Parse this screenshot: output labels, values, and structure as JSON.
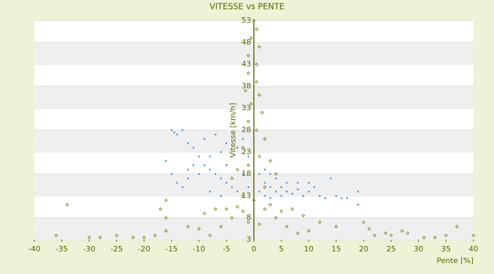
{
  "chart_data": {
    "type": "scatter",
    "title": "VITESSE vs PENTE",
    "x_label": "Pente [%]",
    "y_label": "Vitesse [km/h]",
    "xlim": [
      -40,
      40
    ],
    "xticks": [
      -40,
      -35,
      -30,
      -25,
      -20,
      -15,
      -10,
      -5,
      0,
      5,
      10,
      15,
      20,
      25,
      30,
      35,
      40
    ],
    "ylim": [
      3,
      53
    ],
    "yticks": [
      3,
      8,
      13,
      18,
      23,
      28,
      33,
      38,
      43,
      48,
      53
    ],
    "grid": true,
    "series": [
      {
        "color": "#4a90d9",
        "marker": "square",
        "x": [
          -14,
          -13,
          -12,
          -11,
          -10,
          -9,
          -8,
          -7,
          -6,
          -5,
          -4,
          -3,
          -15,
          -14.5,
          -16,
          -15,
          -14,
          -12,
          -10,
          -8,
          -6,
          -5,
          -4,
          -3,
          -2,
          -1,
          -2,
          -1,
          0,
          1,
          1,
          2,
          2,
          3,
          3,
          4,
          4,
          5,
          5,
          6,
          7,
          8,
          9,
          10,
          11,
          12,
          13,
          14,
          15,
          16,
          17,
          19,
          19,
          -9,
          -7,
          -5,
          -6,
          -8,
          -11,
          -13,
          -12,
          2,
          6,
          8,
          10,
          3
        ],
        "values": [
          27,
          28,
          25,
          24,
          22,
          20,
          19,
          18,
          17,
          16,
          15,
          14,
          28,
          27.5,
          21,
          18,
          16,
          17,
          18,
          14,
          13,
          20,
          22,
          24,
          26,
          22,
          18,
          15,
          20,
          18,
          14,
          16,
          13,
          15,
          12.5,
          14,
          17,
          13,
          15,
          14,
          13.5,
          14.5,
          13,
          14,
          15,
          13,
          12.5,
          17,
          13,
          12.5,
          12.5,
          14,
          11,
          26,
          27,
          25,
          23,
          22,
          20,
          15,
          19,
          19,
          16,
          16,
          16,
          18
        ]
      },
      {
        "color": "#6b7a00",
        "marker": "diamond",
        "x": [
          0,
          0.5,
          -0.5,
          1,
          -1,
          0.5,
          -1,
          0.5,
          -1.5,
          1,
          -0.5,
          1.5,
          -1,
          0.5,
          2,
          -2,
          1,
          -1,
          3,
          -3,
          4,
          -4,
          2,
          -2,
          0,
          -5,
          -3,
          -2,
          2,
          3,
          5,
          -7,
          7,
          -4,
          4,
          -9,
          9,
          -1,
          1,
          -6,
          6,
          -10,
          10,
          -8,
          8,
          12,
          -12,
          15,
          -16,
          -16,
          -17,
          -36,
          -34,
          -30,
          -28,
          -25,
          -22,
          -18,
          -16,
          22,
          21,
          25,
          28,
          31,
          33,
          37,
          40,
          20,
          -20,
          24,
          27,
          35
        ],
        "values": [
          53,
          51,
          49,
          47,
          45,
          43,
          41,
          39,
          37,
          36,
          34,
          32,
          30,
          28,
          26,
          24,
          22,
          20,
          21,
          19,
          18,
          17,
          15,
          13,
          12,
          10,
          10.5,
          9.5,
          10,
          11,
          9.5,
          10,
          10,
          8,
          8,
          9,
          8.5,
          7,
          6.5,
          6,
          6,
          5.5,
          5,
          4,
          4.5,
          7,
          6,
          6,
          8,
          12,
          10,
          4,
          11,
          3.5,
          3.5,
          4,
          3.5,
          4,
          5,
          4,
          5.5,
          4,
          4.5,
          3.5,
          3.5,
          6,
          4,
          7,
          3.5,
          4.5,
          5,
          4
        ]
      }
    ]
  }
}
